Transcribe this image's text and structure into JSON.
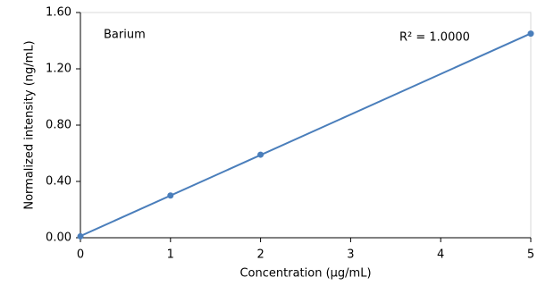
{
  "chart_data": {
    "type": "scatter",
    "x_label": "Concentration (µg/mL)",
    "y_label": "Normalized intensity (ng/mL)",
    "annotations": [
      "Barium",
      "R² = 1.0000"
    ],
    "xlim": [
      0,
      5
    ],
    "xticks": [
      0,
      1,
      2,
      3,
      4,
      5
    ],
    "ylim": [
      0,
      1.6
    ],
    "yticks": [
      {
        "value": 0,
        "label": "0.00"
      },
      {
        "value": 0.4,
        "label": "0.40"
      },
      {
        "value": 0.8,
        "label": "0.80"
      },
      {
        "value": 1.2,
        "label": "1.20"
      },
      {
        "value": 1.6,
        "label": "1.60"
      }
    ],
    "grid": false,
    "trendline": true,
    "series": [
      {
        "name": "Barium",
        "color": "#4a7ebb",
        "x": [
          0,
          1,
          2,
          5
        ],
        "values": [
          0.01,
          0.3,
          0.59,
          1.45
        ]
      }
    ]
  }
}
